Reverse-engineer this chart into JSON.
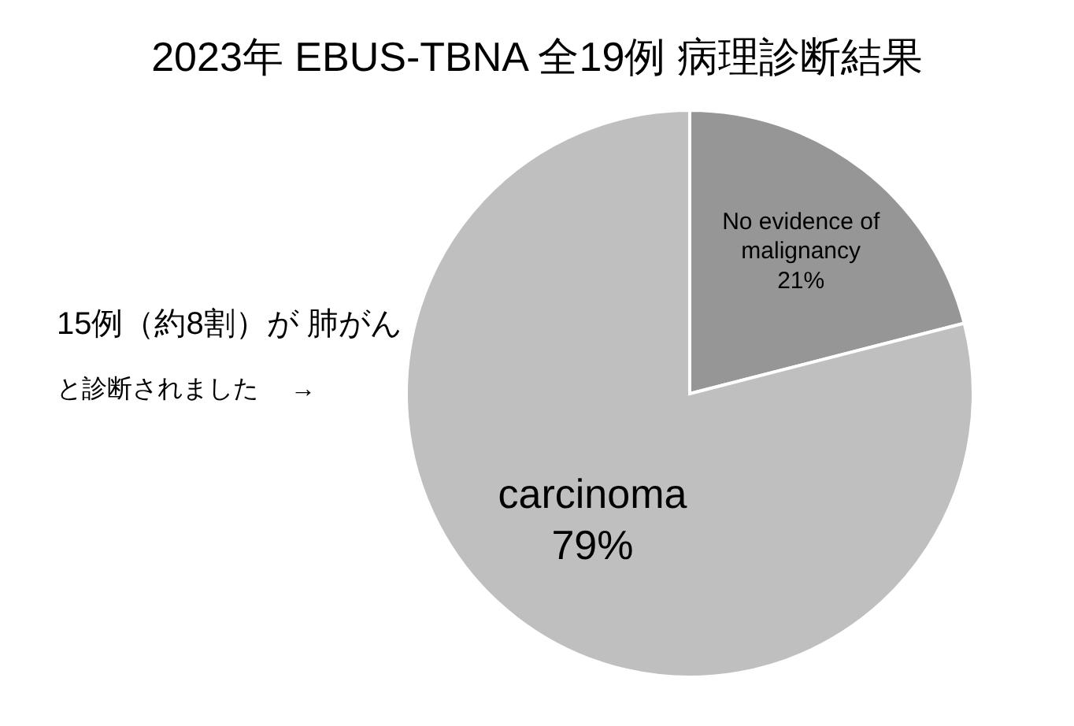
{
  "chart_data": {
    "type": "pie",
    "title": "2023年  EBUS-TBNA 全19例 病理診断結果",
    "categories": [
      "No evidence of malignancy",
      "carcinoma"
    ],
    "values": [
      21,
      79
    ],
    "colors": [
      "#969696",
      "#bfbfbf"
    ],
    "value_labels": [
      "21%",
      "79%"
    ],
    "annotations": [
      "15例（約8割）が  肺がん",
      "と診断されました　 →"
    ]
  }
}
